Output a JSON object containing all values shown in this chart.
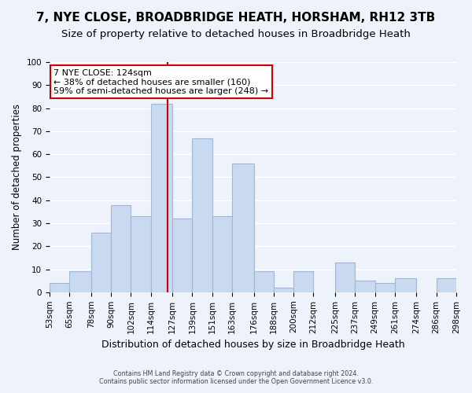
{
  "title": "7, NYE CLOSE, BROADBRIDGE HEATH, HORSHAM, RH12 3TB",
  "subtitle": "Size of property relative to detached houses in Broadbridge Heath",
  "xlabel": "Distribution of detached houses by size in Broadbridge Heath",
  "ylabel": "Number of detached properties",
  "bin_labels": [
    "53sqm",
    "65sqm",
    "78sqm",
    "90sqm",
    "102sqm",
    "114sqm",
    "127sqm",
    "139sqm",
    "151sqm",
    "163sqm",
    "176sqm",
    "188sqm",
    "200sqm",
    "212sqm",
    "225sqm",
    "237sqm",
    "249sqm",
    "261sqm",
    "274sqm",
    "286sqm",
    "298sqm"
  ],
  "bar_heights": [
    4,
    9,
    26,
    38,
    33,
    82,
    32,
    67,
    33,
    56,
    9,
    2,
    9,
    0,
    13,
    5,
    4,
    6,
    0,
    6
  ],
  "bar_color": "#c8d9f0",
  "bar_edge_color": "#a0b8d8",
  "bin_edges": [
    53,
    65,
    78,
    90,
    102,
    114,
    127,
    139,
    151,
    163,
    176,
    188,
    200,
    212,
    225,
    237,
    249,
    261,
    274,
    286,
    298
  ],
  "property_line_x": 124,
  "annotation_line1": "7 NYE CLOSE: 124sqm",
  "annotation_line2": "← 38% of detached houses are smaller (160)",
  "annotation_line3": "59% of semi-detached houses are larger (248) →",
  "red_line_color": "#cc0000",
  "annotation_box_edge_color": "#cc0000",
  "ylim": [
    0,
    100
  ],
  "footer_line1": "Contains HM Land Registry data © Crown copyright and database right 2024.",
  "footer_line2": "Contains public sector information licensed under the Open Government Licence v3.0.",
  "bg_color": "#eef2fa",
  "grid_color": "#ffffff",
  "title_fontsize": 11,
  "subtitle_fontsize": 9.5,
  "xlabel_fontsize": 9,
  "ylabel_fontsize": 8.5,
  "tick_fontsize": 7.5
}
